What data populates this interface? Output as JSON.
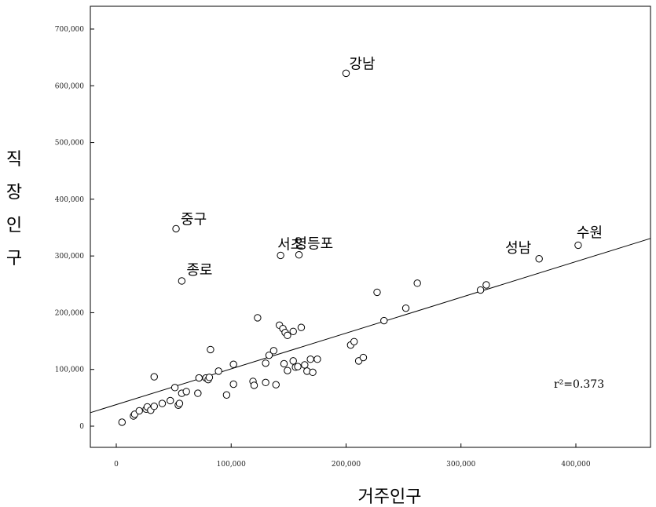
{
  "chart_data": {
    "type": "scatter",
    "title": "",
    "xlabel": "거주인구",
    "ylabel": "직장인구",
    "xlim": [
      -30000,
      470000
    ],
    "ylim": [
      -30000,
      745000
    ],
    "x_ticks": [
      {
        "value": 0,
        "label": "0"
      },
      {
        "value": 100000,
        "label": "100,000"
      },
      {
        "value": 200000,
        "label": "200,000"
      },
      {
        "value": 300000,
        "label": "300,000"
      },
      {
        "value": 400000,
        "label": "400,000"
      }
    ],
    "y_ticks": [
      {
        "value": 0,
        "label": "0"
      },
      {
        "value": 100000,
        "label": "100,000"
      },
      {
        "value": 200000,
        "label": "200,000"
      },
      {
        "value": 300000,
        "label": "300,000"
      },
      {
        "value": 400000,
        "label": "400,000"
      },
      {
        "value": 500000,
        "label": "500,000"
      },
      {
        "value": 600000,
        "label": "600,000"
      },
      {
        "value": 700000,
        "label": "700,000"
      }
    ],
    "grid": false,
    "regression": {
      "slope": 0.63,
      "intercept": 38000
    },
    "r_squared_label": "r²=0.373",
    "points": [
      {
        "x": 200000,
        "y": 622000,
        "label": "강남"
      },
      {
        "x": 52000,
        "y": 348000,
        "label": "중구"
      },
      {
        "x": 57000,
        "y": 256000,
        "label": "종로"
      },
      {
        "x": 143000,
        "y": 301000,
        "label": "서초"
      },
      {
        "x": 159000,
        "y": 302000,
        "label": "영등포"
      },
      {
        "x": 368000,
        "y": 295000,
        "label": "성남"
      },
      {
        "x": 402000,
        "y": 319000,
        "label": "수원"
      },
      {
        "x": 5000,
        "y": 7000
      },
      {
        "x": 15000,
        "y": 18000
      },
      {
        "x": 16000,
        "y": 21000
      },
      {
        "x": 20000,
        "y": 27000
      },
      {
        "x": 26000,
        "y": 30000
      },
      {
        "x": 27000,
        "y": 34000
      },
      {
        "x": 30000,
        "y": 28000
      },
      {
        "x": 33000,
        "y": 35000
      },
      {
        "x": 33000,
        "y": 87000
      },
      {
        "x": 40000,
        "y": 40000
      },
      {
        "x": 47000,
        "y": 45000
      },
      {
        "x": 51000,
        "y": 68000
      },
      {
        "x": 54000,
        "y": 37000
      },
      {
        "x": 55000,
        "y": 40000
      },
      {
        "x": 57000,
        "y": 58000
      },
      {
        "x": 61000,
        "y": 61000
      },
      {
        "x": 71000,
        "y": 58000
      },
      {
        "x": 72000,
        "y": 85000
      },
      {
        "x": 78000,
        "y": 85000
      },
      {
        "x": 80000,
        "y": 82000
      },
      {
        "x": 81000,
        "y": 86000
      },
      {
        "x": 82000,
        "y": 135000
      },
      {
        "x": 89000,
        "y": 97000
      },
      {
        "x": 96000,
        "y": 55000
      },
      {
        "x": 102000,
        "y": 74000
      },
      {
        "x": 102000,
        "y": 109000
      },
      {
        "x": 119000,
        "y": 79000
      },
      {
        "x": 120000,
        "y": 72000
      },
      {
        "x": 123000,
        "y": 191000
      },
      {
        "x": 130000,
        "y": 77000
      },
      {
        "x": 130000,
        "y": 111000
      },
      {
        "x": 133000,
        "y": 125000
      },
      {
        "x": 137000,
        "y": 133000
      },
      {
        "x": 139000,
        "y": 73000
      },
      {
        "x": 142000,
        "y": 178000
      },
      {
        "x": 145000,
        "y": 172000
      },
      {
        "x": 146000,
        "y": 110000
      },
      {
        "x": 147000,
        "y": 165000
      },
      {
        "x": 149000,
        "y": 160000
      },
      {
        "x": 149000,
        "y": 98000
      },
      {
        "x": 154000,
        "y": 167000
      },
      {
        "x": 154000,
        "y": 115000
      },
      {
        "x": 156000,
        "y": 104000
      },
      {
        "x": 158000,
        "y": 105000
      },
      {
        "x": 161000,
        "y": 174000
      },
      {
        "x": 164000,
        "y": 108000
      },
      {
        "x": 166000,
        "y": 97000
      },
      {
        "x": 169000,
        "y": 118000
      },
      {
        "x": 171000,
        "y": 95000
      },
      {
        "x": 175000,
        "y": 118000
      },
      {
        "x": 204000,
        "y": 143000
      },
      {
        "x": 207000,
        "y": 149000
      },
      {
        "x": 211000,
        "y": 115000
      },
      {
        "x": 215000,
        "y": 121000
      },
      {
        "x": 227000,
        "y": 236000
      },
      {
        "x": 233000,
        "y": 186000
      },
      {
        "x": 252000,
        "y": 208000
      },
      {
        "x": 262000,
        "y": 252000
      },
      {
        "x": 317000,
        "y": 240000
      },
      {
        "x": 322000,
        "y": 249000
      }
    ]
  }
}
